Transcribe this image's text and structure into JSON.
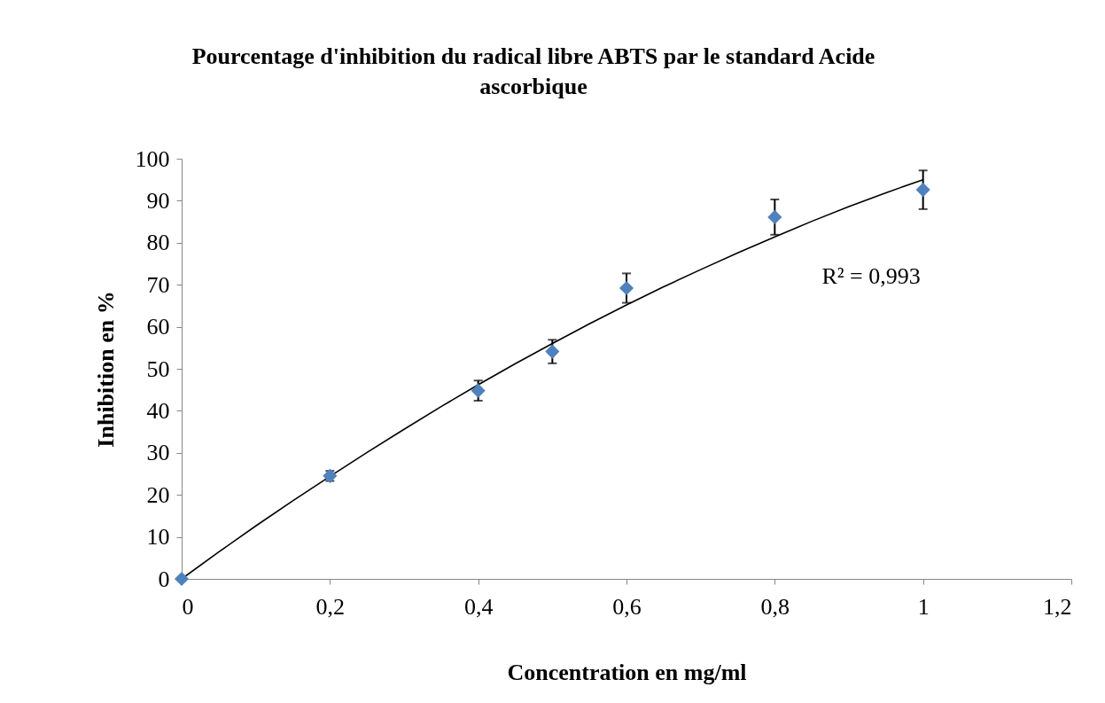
{
  "chart_data": {
    "type": "scatter",
    "title": "Pourcentage d'inhibition du radical libre ABTS par le standard Acide ascorbique",
    "xlabel": "Concentration en mg/ml",
    "ylabel": "Inhibition en %",
    "x": [
      0,
      0.2,
      0.4,
      0.5,
      0.6,
      0.8,
      1
    ],
    "series": [
      {
        "color": "#4f81bd",
        "values": [
          0,
          24.5,
          44.8,
          54.1,
          69.2,
          86.1,
          92.6
        ],
        "errors": [
          null,
          1.2,
          2.4,
          2.8,
          3.5,
          4.2,
          4.6
        ],
        "marker": "diamond"
      },
      {
        "type": "line",
        "color": "#000000",
        "line_style": "solid",
        "marker": "none",
        "x": [
          0,
          0.05,
          0.1,
          0.15,
          0.2,
          0.25,
          0.3,
          0.35,
          0.4,
          0.45,
          0.5,
          0.55,
          0.6,
          0.65,
          0.7,
          0.75,
          0.8,
          0.85,
          0.9,
          0.95,
          1
        ],
        "values": [
          0,
          6.4,
          12.6,
          18.6,
          24.4,
          30.1,
          35.6,
          41.0,
          46.2,
          51.2,
          56.0,
          60.7,
          65.2,
          69.5,
          73.6,
          77.6,
          81.4,
          85.1,
          88.6,
          91.9,
          95.0
        ]
      }
    ],
    "annotations": [
      "R² = 0,993"
    ],
    "xlim": [
      0,
      1.2
    ],
    "xticks": [
      0,
      {
        "value": 0.2,
        "label": "0,2"
      },
      {
        "value": 0.4,
        "label": "0,4"
      },
      {
        "value": 0.6,
        "label": "0,6"
      },
      {
        "value": 0.8,
        "label": "0,8"
      },
      1,
      {
        "value": 1.2,
        "label": "1,2"
      }
    ],
    "ylim": [
      0,
      100
    ],
    "yticks": [
      0,
      10,
      20,
      30,
      40,
      50,
      60,
      70,
      80,
      90,
      100
    ],
    "grid": false
  }
}
